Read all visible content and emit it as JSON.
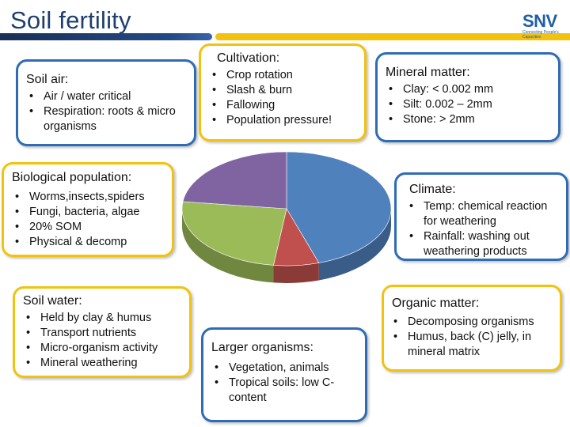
{
  "header": {
    "title": "Soil fertility",
    "logo_text": "SNV",
    "logo_tagline": "Connecting People's Capacities"
  },
  "boxes": {
    "soil_air": {
      "heading": "Soil air:",
      "items": [
        "Air / water critical",
        "Respiration: roots & micro organisms"
      ]
    },
    "cultivation": {
      "heading": "Cultivation:",
      "items": [
        "Crop rotation",
        "Slash & burn",
        "Fallowing",
        "Population pressure!"
      ]
    },
    "mineral_matter": {
      "heading": "Mineral matter:",
      "items": [
        "Clay: < 0.002 mm",
        "Silt: 0.002 – 2mm",
        "Stone: > 2mm"
      ]
    },
    "biological_population": {
      "heading": "Biological population:",
      "items": [
        "Worms,insects,spiders",
        "Fungi, bacteria, algae",
        "20% SOM",
        "Physical & decomp"
      ]
    },
    "climate": {
      "heading": "Climate:",
      "items": [
        "Temp: chemical reaction for weathering",
        "Rainfall: washing out weathering products"
      ]
    },
    "soil_water": {
      "heading": "Soil water:",
      "items": [
        "Held by clay & humus",
        "Transport nutrients",
        "Micro-organism activity",
        "Mineral weathering"
      ]
    },
    "larger_organisms": {
      "heading": "Larger organisms:",
      "items": [
        "Vegetation, animals",
        "Tropical soils: low C-content"
      ]
    },
    "organic_matter": {
      "heading": "Organic matter:",
      "items": [
        "Decomposing organisms",
        "Humus, back (C) jelly, in mineral matrix"
      ]
    }
  },
  "colors": {
    "blue_border": "#2f6cb5",
    "yellow_border": "#f2c20f",
    "title": "#1f3f6e"
  },
  "chart_data": {
    "type": "pie",
    "style": "3d",
    "slices": [
      {
        "value": 45,
        "color": "#4f81bd"
      },
      {
        "value": 7,
        "color": "#c0504d"
      },
      {
        "value": 25,
        "color": "#9bbb59"
      },
      {
        "value": 23,
        "color": "#8064a2"
      }
    ]
  }
}
